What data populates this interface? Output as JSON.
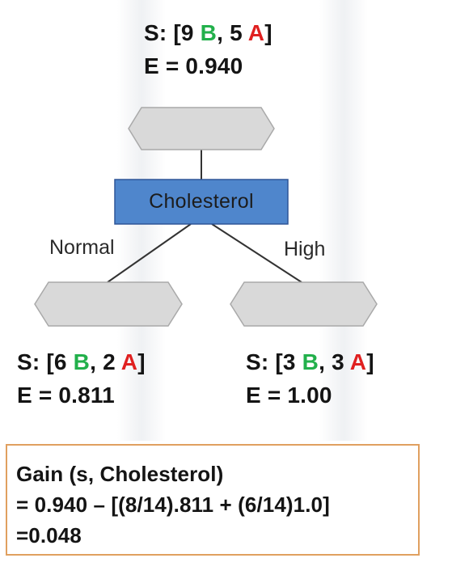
{
  "root": {
    "set_prefix": "S: [",
    "b_count": "9 ",
    "b_label": "B",
    "sep": ", ",
    "a_count": "5 ",
    "a_label": "A",
    "set_suffix": "]",
    "entropy": "E = 0.940"
  },
  "attribute": {
    "label": "Cholesterol"
  },
  "branches": [
    {
      "label": "Normal",
      "set_prefix": "S: [",
      "b_count": "6 ",
      "b_label": "B",
      "sep": ", ",
      "a_count": "2 ",
      "a_label": "A",
      "set_suffix": "]",
      "entropy": "E = 0.811"
    },
    {
      "label": "High",
      "set_prefix": "S: [",
      "b_count": "3 ",
      "b_label": "B",
      "sep": ", ",
      "a_count": "3 ",
      "a_label": "A",
      "set_suffix": "]",
      "entropy": "E = 1.00"
    }
  ],
  "gain": {
    "line1": "Gain (s, Cholesterol)",
    "line2": "= 0.940 – [(8/14).811 + (6/14)1.0]",
    "line3": "=0.048"
  },
  "colors": {
    "class_b": "#22b04b",
    "class_a": "#e02020",
    "node_fill": "#d9d9d9",
    "attribute_fill": "#4f86cc",
    "gain_border": "#e0a060"
  }
}
